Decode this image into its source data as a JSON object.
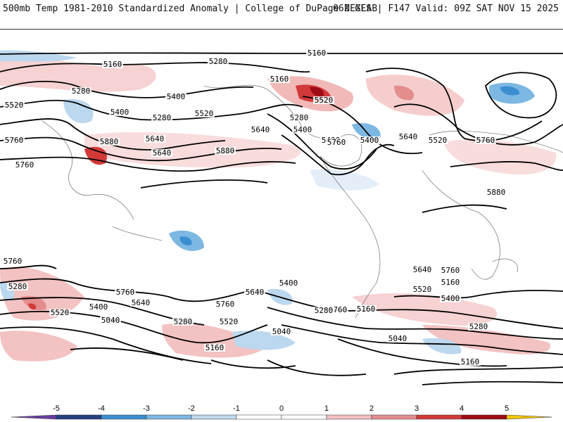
{
  "header": {
    "left": "500mb Temp 1981-2010 Standardized Anomaly | College of DuPage NEXLAB",
    "right": "06Z GFS | F147 Valid: 09Z SAT NOV 15 2025"
  },
  "colorbar": {
    "ticks": [
      "-5",
      "-4",
      "-3",
      "-2",
      "-1",
      "0",
      "1",
      "2",
      "3",
      "4",
      "5"
    ],
    "colors": [
      "#6a3fa0",
      "#25407f",
      "#3b8fd0",
      "#7db8e3",
      "#bcd8ef",
      "#ffffff",
      "#ffffff",
      "#f2c0c0",
      "#e48d8d",
      "#d23a3a",
      "#9e0c15",
      "#f1c60e"
    ]
  },
  "contour_labels": [
    "5160",
    "5160",
    "5280",
    "5280",
    "5400",
    "5520",
    "5400",
    "5280",
    "5520",
    "5640",
    "5760",
    "5880",
    "5640",
    "5760",
    "5880",
    "5160",
    "5280",
    "5400",
    "5520",
    "5640",
    "5400",
    "5760",
    "5400",
    "5640",
    "5520",
    "5760",
    "5880",
    "5760",
    "5280",
    "5400",
    "5520",
    "5640",
    "5760",
    "5040",
    "5280",
    "5520",
    "5760",
    "5640",
    "5160",
    "5400",
    "5760",
    "5040",
    "5280",
    "5160",
    "5040",
    "5160",
    "5280",
    "5400",
    "5520",
    "5640",
    "5760",
    "5160"
  ]
}
